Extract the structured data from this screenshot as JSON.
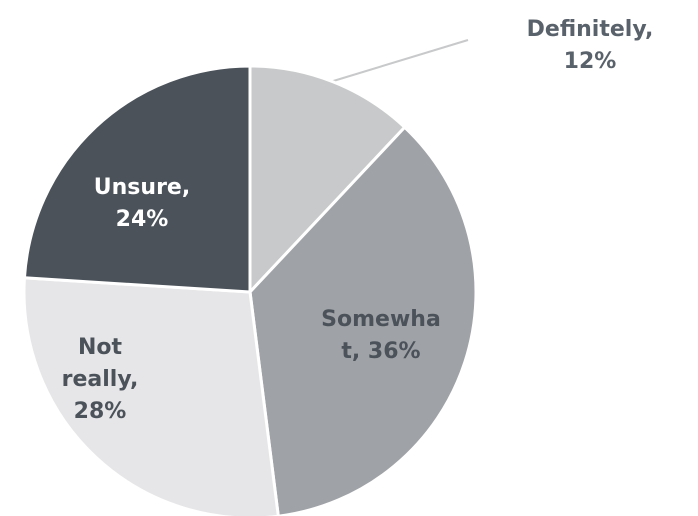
{
  "chart_data": {
    "type": "pie",
    "values": [
      12,
      36,
      28,
      24
    ],
    "value_labels": [
      [
        "Definitely,",
        "12%"
      ],
      [
        "Somewha",
        "t, 36%"
      ],
      [
        "Not",
        "really,",
        "28%"
      ],
      [
        "Unsure,",
        "24%"
      ]
    ],
    "colors": [
      "#c8c9ca",
      "#9fa2a6",
      "#e6e6e8",
      "#4b525a"
    ],
    "label_colors": [
      "#59616a",
      "#4b525a",
      "#4b525a",
      "#ffffff"
    ]
  }
}
